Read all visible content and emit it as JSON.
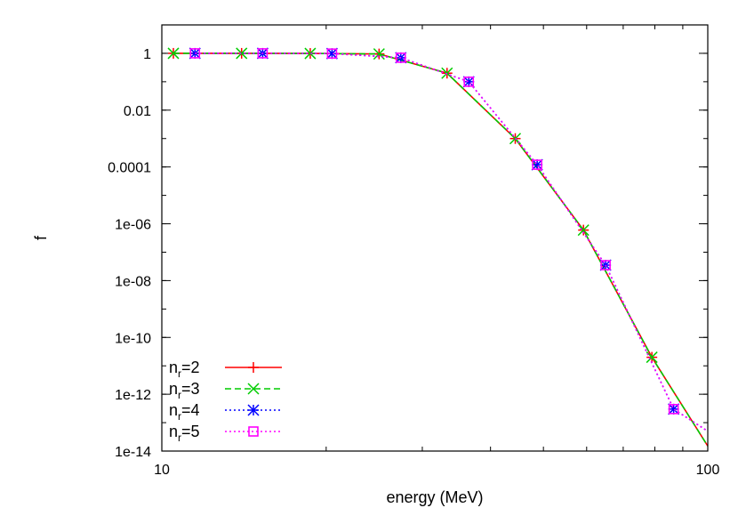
{
  "chart_data": {
    "type": "line",
    "title": "",
    "xlabel": "energy (MeV)",
    "ylabel": "f",
    "x_scale": "log",
    "y_scale": "log",
    "xlim": [
      10,
      100
    ],
    "ylim": [
      1e-14,
      10
    ],
    "x_ticks": [
      {
        "value": 10,
        "label": "10"
      },
      {
        "value": 100,
        "label": "100"
      }
    ],
    "y_ticks": [
      {
        "value": 1,
        "label": "1"
      },
      {
        "value": 0.01,
        "label": "0.01"
      },
      {
        "value": 0.0001,
        "label": "0.0001"
      },
      {
        "value": 1e-06,
        "label": "1e-06"
      },
      {
        "value": 1e-08,
        "label": "1e-08"
      },
      {
        "value": 1e-10,
        "label": "1e-10"
      },
      {
        "value": 1e-12,
        "label": "1e-12"
      },
      {
        "value": 1e-14,
        "label": "1e-14"
      }
    ],
    "legend_position": "bottom-left",
    "grid": false,
    "series": [
      {
        "name_base": "n",
        "name_sub": "r",
        "name_suffix": "=2",
        "color": "#ff0000",
        "dash": "solid",
        "marker": "plus",
        "x": [
          10.5,
          14.0,
          18.7,
          25.0,
          33.3,
          44.4,
          59.2,
          79.0,
          100.0
        ],
        "y": [
          1.0,
          1.0,
          0.99,
          0.95,
          0.2,
          0.001,
          6e-07,
          2e-11,
          1.5e-14
        ]
      },
      {
        "name_base": "n",
        "name_sub": "r",
        "name_suffix": "=3",
        "color": "#00cc00",
        "dash": "dashed",
        "marker": "cross",
        "x": [
          10.5,
          14.0,
          18.7,
          25.0,
          33.3,
          44.4,
          59.2,
          79.0,
          100.0
        ],
        "y": [
          1.0,
          1.0,
          0.99,
          0.95,
          0.2,
          0.001,
          6e-07,
          2e-11,
          1.5e-14
        ]
      },
      {
        "name_base": "n",
        "name_sub": "r",
        "name_suffix": "=4",
        "color": "#0000ff",
        "dash": "dotted",
        "marker": "star",
        "x": [
          11.5,
          15.3,
          20.5,
          27.4,
          36.5,
          48.7,
          65.0,
          86.6,
          100.0
        ],
        "y": [
          1.0,
          1.0,
          0.98,
          0.7,
          0.1,
          0.00012,
          3.5e-08,
          3e-13,
          5e-14
        ]
      },
      {
        "name_base": "n",
        "name_sub": "r",
        "name_suffix": "=5",
        "color": "#ff00ff",
        "dash": "dotted",
        "marker": "square",
        "x": [
          11.5,
          15.3,
          20.5,
          27.4,
          36.5,
          48.7,
          65.0,
          86.6,
          100.0
        ],
        "y": [
          1.0,
          1.0,
          0.98,
          0.7,
          0.1,
          0.00012,
          3.5e-08,
          3e-13,
          5e-14
        ]
      }
    ]
  }
}
